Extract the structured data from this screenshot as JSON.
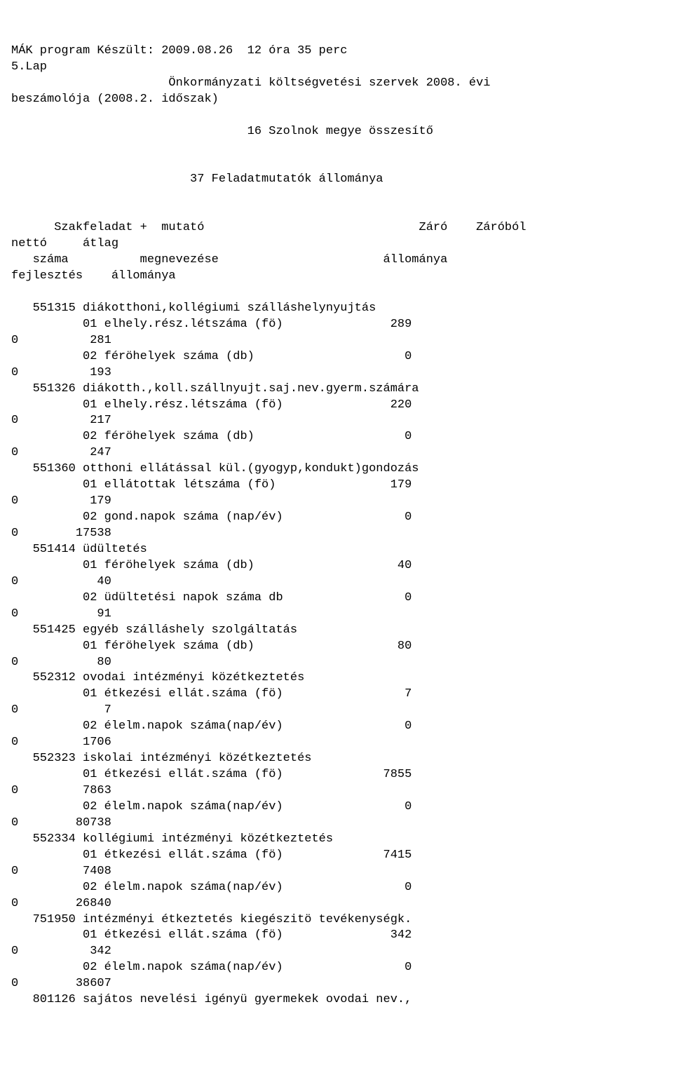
{
  "header": {
    "line1": "MÁK program Készült: 2009.08.26  12 óra 35 perc",
    "line2": "5.Lap",
    "line3_indent": "                      ",
    "line3": "Önkormányzati költségvetési szervek 2008. évi",
    "line4": "beszámolója (2008.2. időszak)",
    "line5_indent": "                                 ",
    "line5": "16 Szolnok megye összesítő",
    "line6_indent": "                         ",
    "line6": "37 Feladatmutatók állománya",
    "colA_indent": "      ",
    "colA": "Szakfeladat +  mutató                              Záró    Záróból",
    "colB": "nettó     átlag",
    "colC_indent": "   ",
    "colC": "száma          megnevezése                       állománya",
    "colD": "fejlesztés    állománya"
  },
  "rows": [
    {
      "t": "h",
      "text": "   551315 diákotthoni,kollégiumi szálláshelynyujtás"
    },
    {
      "t": "v",
      "label": "01 elhely.rész.létszáma (fö)",
      "val": "289"
    },
    {
      "t": "l",
      "left": "0",
      "right": "281"
    },
    {
      "t": "v",
      "label": "02 féröhelyek száma (db)",
      "val": "0"
    },
    {
      "t": "l",
      "left": "0",
      "right": "193"
    },
    {
      "t": "h",
      "text": "   551326 diákotth.,koll.szállnyujt.saj.nev.gyerm.számára"
    },
    {
      "t": "v",
      "label": "01 elhely.rész.létszáma (fö)",
      "val": "220"
    },
    {
      "t": "l",
      "left": "0",
      "right": "217"
    },
    {
      "t": "v",
      "label": "02 féröhelyek száma (db)",
      "val": "0"
    },
    {
      "t": "l",
      "left": "0",
      "right": "247"
    },
    {
      "t": "h",
      "text": "   551360 otthoni ellátással kül.(gyogyp,kondukt)gondozás"
    },
    {
      "t": "v",
      "label": "01 ellátottak létszáma (fö)",
      "val": "179"
    },
    {
      "t": "l",
      "left": "0",
      "right": "179"
    },
    {
      "t": "v",
      "label": "02 gond.napok száma (nap/év)",
      "val": "0"
    },
    {
      "t": "l",
      "left": "0",
      "right": "17538"
    },
    {
      "t": "h",
      "text": "   551414 üdültetés"
    },
    {
      "t": "v",
      "label": "01 féröhelyek száma (db)",
      "val": "40"
    },
    {
      "t": "l",
      "left": "0",
      "right": "40"
    },
    {
      "t": "v",
      "label": "02 üdültetési napok száma db",
      "val": "0"
    },
    {
      "t": "l",
      "left": "0",
      "right": "91"
    },
    {
      "t": "h",
      "text": "   551425 egyéb szálláshely szolgáltatás"
    },
    {
      "t": "v",
      "label": "01 féröhelyek száma (db)",
      "val": "80"
    },
    {
      "t": "l",
      "left": "0",
      "right": "80"
    },
    {
      "t": "h",
      "text": "   552312 ovodai intézményi közétkeztetés"
    },
    {
      "t": "v",
      "label": "01 étkezési ellát.száma (fö)",
      "val": "7"
    },
    {
      "t": "l",
      "left": "0",
      "right": "7"
    },
    {
      "t": "v",
      "label": "02 élelm.napok száma(nap/év)",
      "val": "0"
    },
    {
      "t": "l",
      "left": "0",
      "right": "1706"
    },
    {
      "t": "h",
      "text": "   552323 iskolai intézményi közétkeztetés"
    },
    {
      "t": "v",
      "label": "01 étkezési ellát.száma (fö)",
      "val": "7855"
    },
    {
      "t": "l",
      "left": "0",
      "right": "7863"
    },
    {
      "t": "v",
      "label": "02 élelm.napok száma(nap/év)",
      "val": "0"
    },
    {
      "t": "l",
      "left": "0",
      "right": "80738"
    },
    {
      "t": "h",
      "text": "   552334 kollégiumi intézményi közétkeztetés"
    },
    {
      "t": "v",
      "label": "01 étkezési ellát.száma (fö)",
      "val": "7415"
    },
    {
      "t": "l",
      "left": "0",
      "right": "7408"
    },
    {
      "t": "v",
      "label": "02 élelm.napok száma(nap/év)",
      "val": "0"
    },
    {
      "t": "l",
      "left": "0",
      "right": "26840"
    },
    {
      "t": "h",
      "text": "   751950 intézményi étkeztetés kiegészitö tevékenységk."
    },
    {
      "t": "v",
      "label": "01 étkezési ellát.száma (fö)",
      "val": "342"
    },
    {
      "t": "l",
      "left": "0",
      "right": "342"
    },
    {
      "t": "v",
      "label": "02 élelm.napok száma(nap/év)",
      "val": "0"
    },
    {
      "t": "l",
      "left": "0",
      "right": "38607"
    },
    {
      "t": "h",
      "text": "   801126 sajátos nevelési igényü gyermekek ovodai nev.,"
    }
  ],
  "layout": {
    "label_indent": "          ",
    "value_col": 56,
    "left_col0_width": 14
  }
}
